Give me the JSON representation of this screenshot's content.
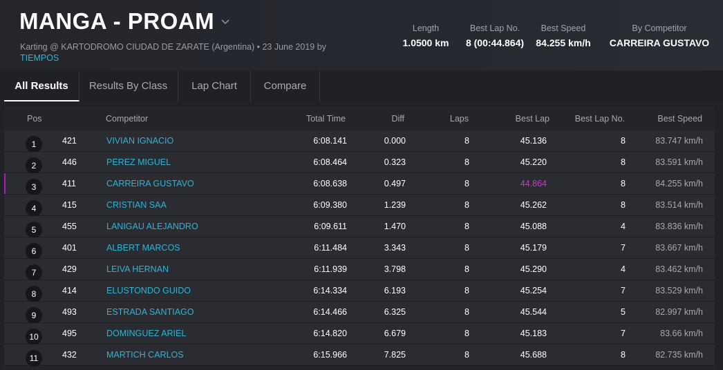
{
  "header": {
    "title": "MANGA - PROAM",
    "subtitle": "Karting @ KARTODROMO CIUDAD DE ZARATE (Argentina) • 23 June 2019 by",
    "by_link": "TIEMPOS",
    "stats": [
      {
        "label": "Length",
        "value": "1.0500 km"
      },
      {
        "label": "Best Lap No.",
        "value": "8 (00:44.864)"
      },
      {
        "label": "Best Speed",
        "value": "84.255 km/h"
      },
      {
        "label": "By Competitor",
        "value": "CARREIRA GUSTAVO"
      }
    ]
  },
  "tabs": [
    {
      "label": "All Results",
      "active": true
    },
    {
      "label": "Results By Class",
      "active": false
    },
    {
      "label": "Lap Chart",
      "active": false
    },
    {
      "label": "Compare",
      "active": false
    }
  ],
  "table": {
    "columns": [
      "Pos",
      "Competitor",
      "Total Time",
      "Diff",
      "Laps",
      "Best Lap",
      "Best Lap No.",
      "Best Speed"
    ],
    "rows": [
      {
        "pos": "1",
        "num": "421",
        "name": "VIVIAN IGNACIO",
        "total": "6:08.141",
        "diff": "0.000",
        "laps": "8",
        "best": "45.136",
        "bestno": "8",
        "speed": "83.747 km/h"
      },
      {
        "pos": "2",
        "num": "446",
        "name": "PEREZ MIGUEL",
        "total": "6:08.464",
        "diff": "0.323",
        "laps": "8",
        "best": "45.220",
        "bestno": "8",
        "speed": "83.591 km/h"
      },
      {
        "pos": "3",
        "num": "411",
        "name": "CARREIRA GUSTAVO",
        "total": "6:08.638",
        "diff": "0.497",
        "laps": "8",
        "best": "44.864",
        "bestno": "8",
        "speed": "84.255 km/h",
        "overall_best": true
      },
      {
        "pos": "4",
        "num": "415",
        "name": "CRISTIAN SAA",
        "total": "6:09.380",
        "diff": "1.239",
        "laps": "8",
        "best": "45.262",
        "bestno": "8",
        "speed": "83.514 km/h"
      },
      {
        "pos": "5",
        "num": "455",
        "name": "LANIGAU ALEJANDRO",
        "total": "6:09.611",
        "diff": "1.470",
        "laps": "8",
        "best": "45.088",
        "bestno": "4",
        "speed": "83.836 km/h"
      },
      {
        "pos": "6",
        "num": "401",
        "name": "ALBERT MARCOS",
        "total": "6:11.484",
        "diff": "3.343",
        "laps": "8",
        "best": "45.179",
        "bestno": "7",
        "speed": "83.667 km/h"
      },
      {
        "pos": "7",
        "num": "429",
        "name": "LEIVA HERNAN",
        "total": "6:11.939",
        "diff": "3.798",
        "laps": "8",
        "best": "45.290",
        "bestno": "4",
        "speed": "83.462 km/h"
      },
      {
        "pos": "8",
        "num": "414",
        "name": "ELUSTONDO GUIDO",
        "total": "6:14.334",
        "diff": "6.193",
        "laps": "8",
        "best": "45.254",
        "bestno": "7",
        "speed": "83.529 km/h"
      },
      {
        "pos": "9",
        "num": "493",
        "name": "ESTRADA SANTIAGO",
        "total": "6:14.466",
        "diff": "6.325",
        "laps": "8",
        "best": "45.544",
        "bestno": "5",
        "speed": "82.997 km/h"
      },
      {
        "pos": "10",
        "num": "495",
        "name": "DOMINGUEZ ARIEL",
        "total": "6:14.820",
        "diff": "6.679",
        "laps": "8",
        "best": "45.183",
        "bestno": "7",
        "speed": "83.66 km/h"
      },
      {
        "pos": "11",
        "num": "432",
        "name": "MARTICH CARLOS",
        "total": "6:15.966",
        "diff": "7.825",
        "laps": "8",
        "best": "45.688",
        "bestno": "8",
        "speed": "82.735 km/h"
      }
    ]
  },
  "colors": {
    "link": "#2fb4d4",
    "best_lap_highlight": "#c83ccb",
    "background": "#202227"
  },
  "icons": {
    "title_dropdown": "chevron-down-icon"
  }
}
